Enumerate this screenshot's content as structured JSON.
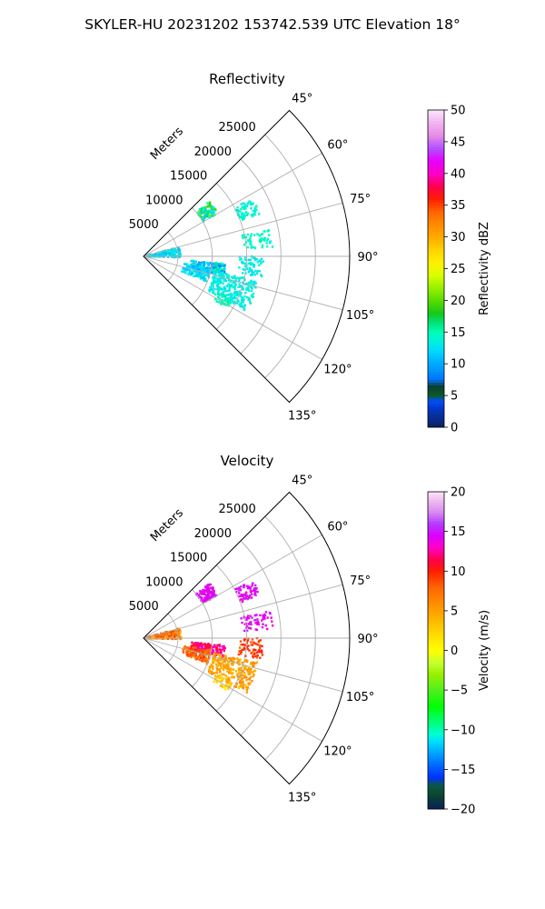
{
  "figure": {
    "suptitle": "SKYLER-HU  20231202  153742.539 UTC Elevation 18°"
  },
  "chart_data": [
    {
      "type": "heatmap",
      "subtype": "polar-sector-ppi",
      "title": "Reflectivity",
      "range_label": "Meters",
      "range_ticks": [
        5000,
        10000,
        15000,
        20000,
        25000
      ],
      "range_tick_labels": [
        "5000",
        "10000",
        "15000",
        "20000",
        "25000"
      ],
      "rmax": 30000,
      "theta_range": [
        45,
        135
      ],
      "theta_ticks": [
        45,
        60,
        75,
        90,
        105,
        120,
        135
      ],
      "theta_tick_labels": [
        "45°",
        "60°",
        "75°",
        "90°",
        "105°",
        "120°",
        "135°"
      ],
      "grid": true,
      "colorbar": {
        "label": "Reflectivity dBZ",
        "range": [
          0,
          50
        ],
        "ticks": [
          0,
          5,
          10,
          15,
          20,
          25,
          30,
          35,
          40,
          45,
          50
        ],
        "colormap": "pyart_NWSRef"
      },
      "echo_regions": [
        {
          "theta_deg": [
            50,
            60
          ],
          "range_m": [
            10000,
            12500
          ],
          "value": 12,
          "peak": 22,
          "density": 0.85
        },
        {
          "theta_deg": [
            62,
            70
          ],
          "range_m": [
            15000,
            18000
          ],
          "value": 13,
          "peak": 15,
          "density": 0.55
        },
        {
          "theta_deg": [
            78,
            86
          ],
          "range_m": [
            14500,
            19000
          ],
          "value": 14,
          "peak": 15,
          "density": 0.3
        },
        {
          "theta_deg": [
            75,
            92
          ],
          "range_m": [
            500,
            5500
          ],
          "value": 11,
          "peak": 14,
          "density": 0.55
        },
        {
          "theta_deg": [
            95,
            104
          ],
          "range_m": [
            7000,
            12000
          ],
          "value": 8,
          "peak": 16,
          "density": 0.75
        },
        {
          "theta_deg": [
            100,
            112
          ],
          "range_m": [
            6000,
            10000
          ],
          "value": 11,
          "peak": 14,
          "density": 0.55
        },
        {
          "theta_deg": [
            102,
            118
          ],
          "range_m": [
            10500,
            17000
          ],
          "value": 13,
          "peak": 14,
          "density": 0.5
        },
        {
          "theta_deg": [
            90,
            100
          ],
          "range_m": [
            14000,
            17500
          ],
          "value": 13,
          "peak": 14,
          "density": 0.35
        },
        {
          "theta_deg": [
            116,
            122
          ],
          "range_m": [
            12000,
            14500
          ],
          "value": 14,
          "peak": 16,
          "density": 0.45
        }
      ]
    },
    {
      "type": "heatmap",
      "subtype": "polar-sector-ppi",
      "title": "Velocity",
      "range_label": "Meters",
      "range_ticks": [
        5000,
        10000,
        15000,
        20000,
        25000
      ],
      "range_tick_labels": [
        "5000",
        "10000",
        "15000",
        "20000",
        "25000"
      ],
      "rmax": 30000,
      "theta_range": [
        45,
        135
      ],
      "theta_ticks": [
        45,
        60,
        75,
        90,
        105,
        120,
        135
      ],
      "theta_tick_labels": [
        "45°",
        "60°",
        "75°",
        "90°",
        "105°",
        "120°",
        "135°"
      ],
      "grid": true,
      "colorbar": {
        "label": "Velocity (m/s)",
        "range": [
          -20,
          20
        ],
        "ticks": [
          -20,
          -15,
          -10,
          -5,
          0,
          5,
          10,
          15,
          20
        ],
        "colormap": "pyart_BuDRd18"
      },
      "echo_regions": [
        {
          "theta_deg": [
            50,
            60
          ],
          "range_m": [
            10000,
            12500
          ],
          "value": 14,
          "peak": 15,
          "density": 0.85
        },
        {
          "theta_deg": [
            62,
            70
          ],
          "range_m": [
            15000,
            18000
          ],
          "value": 14,
          "peak": 15,
          "density": 0.55
        },
        {
          "theta_deg": [
            78,
            86
          ],
          "range_m": [
            14500,
            19000
          ],
          "value": 14,
          "peak": 15,
          "density": 0.3
        },
        {
          "theta_deg": [
            75,
            92
          ],
          "range_m": [
            500,
            5500
          ],
          "value": 9,
          "peak": 3,
          "density": 0.55
        },
        {
          "theta_deg": [
            95,
            104
          ],
          "range_m": [
            7000,
            12000
          ],
          "value": 11,
          "peak": 14,
          "density": 0.75
        },
        {
          "theta_deg": [
            100,
            112
          ],
          "range_m": [
            6000,
            10000
          ],
          "value": 9,
          "peak": 6,
          "density": 0.55
        },
        {
          "theta_deg": [
            102,
            118
          ],
          "range_m": [
            10500,
            17000
          ],
          "value": 6,
          "peak": 3,
          "density": 0.5
        },
        {
          "theta_deg": [
            90,
            100
          ],
          "range_m": [
            14000,
            17500
          ],
          "value": 10,
          "peak": 8,
          "density": 0.35
        },
        {
          "theta_deg": [
            116,
            122
          ],
          "range_m": [
            12000,
            14500
          ],
          "value": 3,
          "peak": 1,
          "density": 0.45
        }
      ]
    }
  ]
}
